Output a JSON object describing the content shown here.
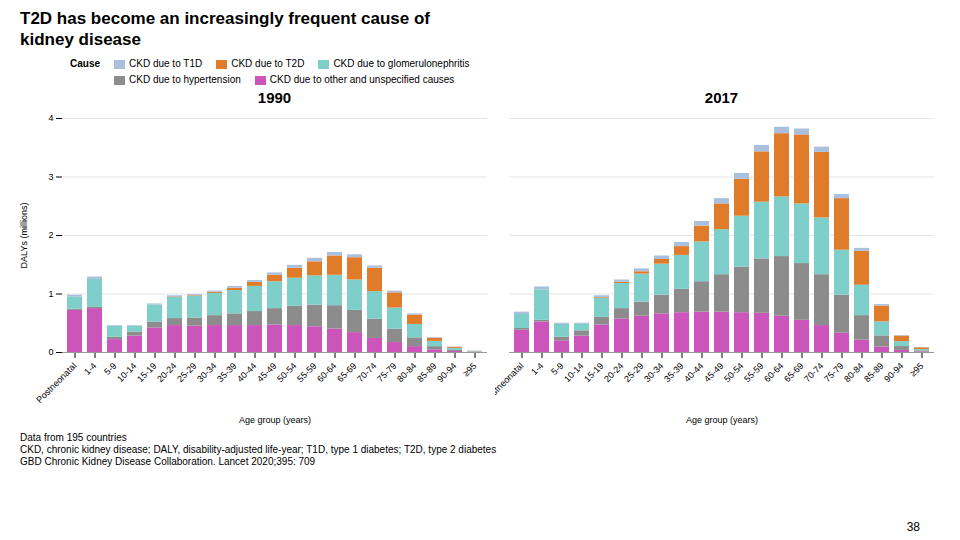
{
  "title": "T2D has become an increasingly frequent cause of\nkidney disease",
  "legend_title": "Cause",
  "annotations": [
    "Data from 195 countries",
    "CKD, chronic kidney disease; DALY, disability-adjusted life-year; T1D, type 1 diabetes; T2D, type 2 diabetes",
    "GBD Chronic Kidney Disease Collaboration. ​Lancet​ 2020;395: 709",
    "38"
  ],
  "chart_data": [
    {
      "type": "bar",
      "title": "1990",
      "stacked": true,
      "grid": true,
      "legend": "top",
      "xlabel": "Age group (years)",
      "ylabel": "DALYs (millions)",
      "ylim": [
        0,
        4
      ],
      "yticks": [
        0,
        1,
        2,
        3,
        4
      ],
      "categories": [
        "Postneonatal",
        "1-4",
        "5-9",
        "10-14",
        "15-19",
        "20-24",
        "25-29",
        "30-34",
        "35-39",
        "40-44",
        "45-49",
        "50-54",
        "55-59",
        "60-64",
        "65-69",
        "70-74",
        "75-79",
        "80-84",
        "85-89",
        "90-94",
        "≥95"
      ],
      "series": [
        {
          "name": "CKD due to other and unspecified causes",
          "color": "#CC55BB",
          "values": [
            0.72,
            0.75,
            0.22,
            0.28,
            0.42,
            0.46,
            0.45,
            0.46,
            0.46,
            0.46,
            0.47,
            0.46,
            0.44,
            0.4,
            0.34,
            0.24,
            0.17,
            0.1,
            0.045,
            0.018,
            0.005
          ]
        },
        {
          "name": "CKD due to hypertension",
          "color": "#8C8C8C",
          "values": [
            0.02,
            0.02,
            0.04,
            0.07,
            0.1,
            0.12,
            0.14,
            0.17,
            0.2,
            0.24,
            0.28,
            0.33,
            0.37,
            0.4,
            0.38,
            0.33,
            0.23,
            0.15,
            0.055,
            0.018,
            0.004
          ]
        },
        {
          "name": "CKD due to glomerulonephritis",
          "color": "#7ECECA",
          "values": [
            0.21,
            0.48,
            0.19,
            0.1,
            0.29,
            0.36,
            0.37,
            0.38,
            0.4,
            0.43,
            0.46,
            0.48,
            0.5,
            0.52,
            0.52,
            0.47,
            0.36,
            0.23,
            0.09,
            0.035,
            0.009
          ]
        },
        {
          "name": "CKD due to T2D",
          "color": "#E07B2A",
          "values": [
            0.0,
            0.0,
            0.0,
            0.0,
            0.0,
            0.01,
            0.01,
            0.02,
            0.04,
            0.07,
            0.11,
            0.17,
            0.24,
            0.33,
            0.38,
            0.4,
            0.26,
            0.16,
            0.055,
            0.018,
            0.004
          ]
        },
        {
          "name": "CKD due to T1D",
          "color": "#AABFDD",
          "values": [
            0.03,
            0.04,
            0.01,
            0.01,
            0.02,
            0.02,
            0.02,
            0.02,
            0.03,
            0.03,
            0.04,
            0.05,
            0.06,
            0.06,
            0.05,
            0.04,
            0.03,
            0.02,
            0.008,
            0.004,
            0.001
          ]
        }
      ]
    },
    {
      "type": "bar",
      "title": "2017",
      "stacked": true,
      "grid": true,
      "tick_labels": "x",
      "xlabel": "Age group (years)",
      "ylim": [
        0,
        4
      ],
      "yticks": [
        0,
        1,
        2,
        3,
        4
      ],
      "categories": [
        "Postneonatal",
        "1-4",
        "5-9",
        "10-14",
        "15-19",
        "20-24",
        "25-29",
        "30-34",
        "35-39",
        "40-44",
        "45-49",
        "50-54",
        "55-59",
        "60-64",
        "65-69",
        "70-74",
        "75-79",
        "80-84",
        "85-89",
        "90-94",
        "≥95"
      ],
      "series": [
        {
          "name": "CKD due to other and unspecified causes",
          "color": "#CC55BB",
          "values": [
            0.38,
            0.52,
            0.2,
            0.28,
            0.47,
            0.57,
            0.62,
            0.66,
            0.68,
            0.69,
            0.69,
            0.68,
            0.67,
            0.62,
            0.55,
            0.46,
            0.33,
            0.21,
            0.094,
            0.036,
            0.01
          ]
        },
        {
          "name": "CKD due to hypertension",
          "color": "#8C8C8C",
          "values": [
            0.03,
            0.03,
            0.06,
            0.09,
            0.13,
            0.18,
            0.24,
            0.32,
            0.4,
            0.52,
            0.64,
            0.78,
            0.93,
            1.02,
            0.97,
            0.87,
            0.65,
            0.42,
            0.19,
            0.065,
            0.018
          ]
        },
        {
          "name": "CKD due to glomerulonephritis",
          "color": "#7ECECA",
          "values": [
            0.24,
            0.52,
            0.22,
            0.11,
            0.33,
            0.43,
            0.48,
            0.53,
            0.58,
            0.68,
            0.77,
            0.87,
            0.97,
            1.02,
            1.02,
            0.97,
            0.77,
            0.52,
            0.24,
            0.085,
            0.024
          ]
        },
        {
          "name": "CKD due to T2D",
          "color": "#E07B2A",
          "values": [
            0.0,
            0.0,
            0.0,
            0.0,
            0.01,
            0.02,
            0.04,
            0.08,
            0.15,
            0.27,
            0.44,
            0.63,
            0.86,
            1.08,
            1.18,
            1.12,
            0.88,
            0.58,
            0.27,
            0.095,
            0.028
          ]
        },
        {
          "name": "CKD due to T1D",
          "color": "#AABFDD",
          "values": [
            0.04,
            0.05,
            0.02,
            0.02,
            0.03,
            0.04,
            0.05,
            0.06,
            0.07,
            0.08,
            0.09,
            0.1,
            0.11,
            0.11,
            0.1,
            0.09,
            0.07,
            0.05,
            0.025,
            0.009,
            0.003
          ]
        }
      ]
    }
  ]
}
